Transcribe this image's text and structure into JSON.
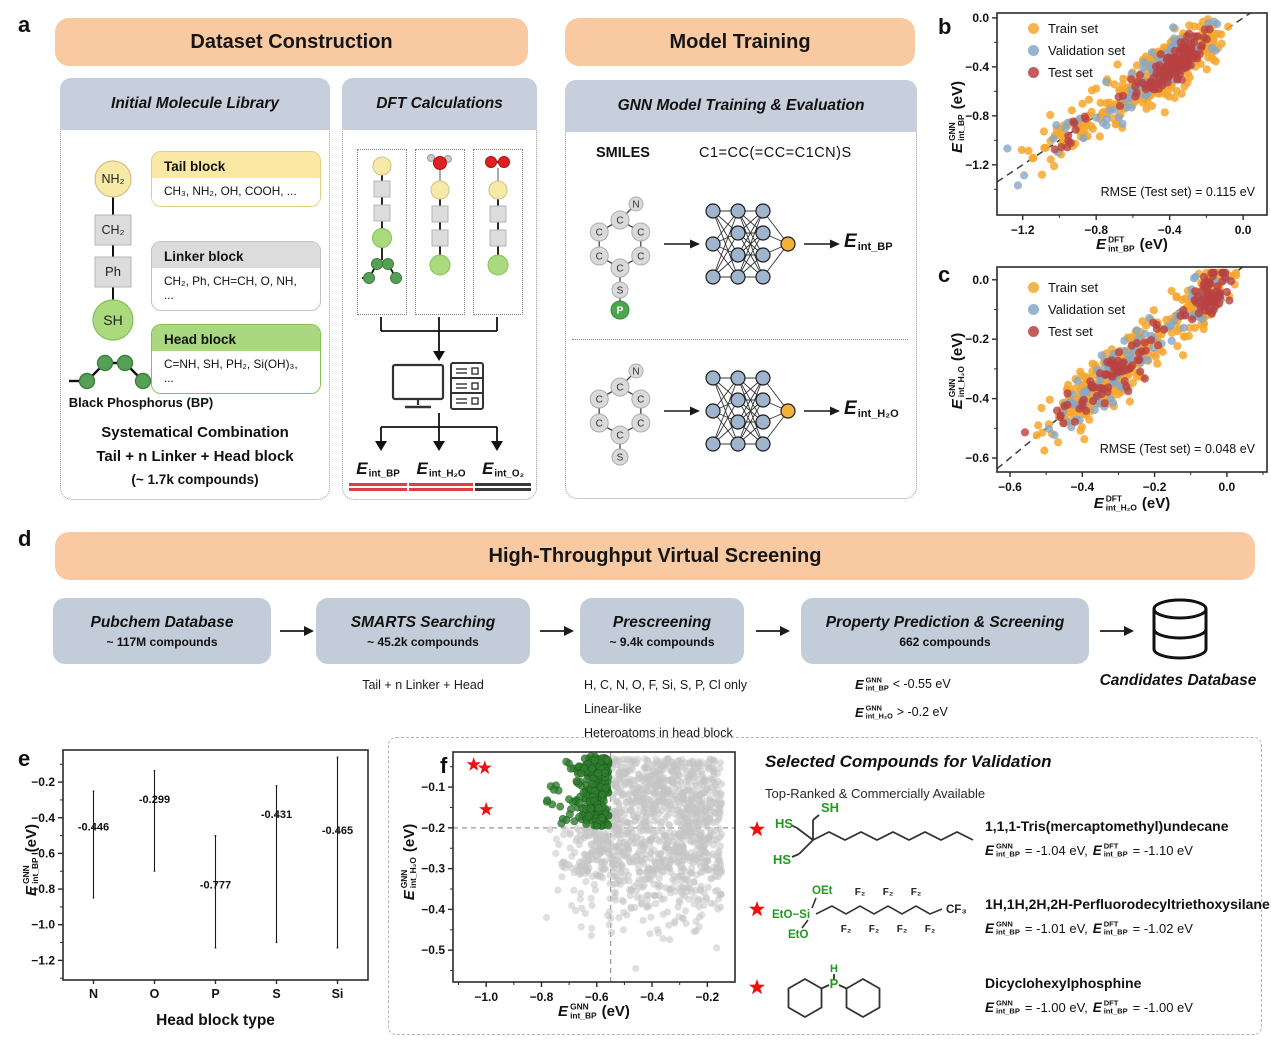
{
  "labels": {
    "a": "a",
    "b": "b",
    "c": "c",
    "d": "d",
    "e": "e",
    "f": "f"
  },
  "theme": {
    "banner_bg": "#F9C9A1",
    "subpanel_header_bg": "#C7CFDC",
    "flowbox_bg": "#C3CCD9",
    "accent_red": "#E03E3E",
    "bp_green": "#55A055",
    "node_yellow": "#F7E9A6",
    "node_gray": "#DCDCDC",
    "node_green": "#ABDA7E"
  },
  "panel_a": {
    "banner_dataset": "Dataset Construction",
    "banner_model": "Model Training",
    "library": {
      "title": "Initial Molecule Library",
      "chain": [
        "NH₂",
        "CH₂",
        "Ph",
        "SH"
      ],
      "bp_label": "Black Phosphorus (BP)",
      "blocks": [
        {
          "name": "Tail block",
          "items": "CH₃, NH₂, OH, COOH, ...",
          "header_bg": "#FBE9A3",
          "border": "#E3CE7E"
        },
        {
          "name": "Linker block",
          "items": "CH₂, Ph, CH=CH, O, NH, ...",
          "header_bg": "#DCDCDC",
          "border": "#C2C2C2"
        },
        {
          "name": "Head block",
          "items": "C=NH, SH, PH₂, Si(OH)₃, ...",
          "header_bg": "#A9D880",
          "border": "#82C24E"
        }
      ],
      "combination": [
        "Systematical Combination",
        "Tail + n Linker + Head block",
        "(~ 1.7k compounds)"
      ]
    },
    "dft": {
      "title": "DFT Calculations",
      "outputs": [
        {
          "base": "E",
          "sub": "int_BP",
          "color": "#E03E3E"
        },
        {
          "base": "E",
          "sub": "int_H₂O",
          "color": "#E03E3E"
        },
        {
          "base": "E",
          "sub": "int_O₂",
          "color": "#3A3A3A"
        }
      ]
    },
    "gnn": {
      "title": "GNN Model Training & Evaluation",
      "smiles_label": "SMILES",
      "smiles": "C1=CC(=CC=C1CN)S",
      "mol": {
        "ring": "C",
        "n": "N",
        "s": "S",
        "p": "P"
      },
      "outputs": [
        {
          "base": "E",
          "sub": "int_BP"
        },
        {
          "base": "E",
          "sub": "int_H₂O"
        }
      ]
    }
  },
  "panel_d": {
    "banner": "High-Throughput Virtual Screening",
    "steps": [
      {
        "title": "Pubchem Database",
        "sub": "~ 117M compounds",
        "notes": []
      },
      {
        "title": "SMARTS Searching",
        "sub": "~ 45.2k compounds",
        "notes": [
          "Tail + n Linker + Head"
        ]
      },
      {
        "title": "Prescreening",
        "sub": "~ 9.4k compounds",
        "notes": [
          "H, C, N, O, F, Si, S, P, Cl only",
          "Linear-like",
          "Heteroatoms in head block"
        ]
      },
      {
        "title": "Property Prediction & Screening",
        "sub": "662 compounds",
        "notes": []
      }
    ],
    "criteria": [
      {
        "base": "E",
        "sup": "GNN",
        "sub": "int_BP",
        "cmp": "< -0.55 eV"
      },
      {
        "base": "E",
        "sup": "GNN",
        "sub": "int_H₂O",
        "cmp": "> -0.2 eV"
      }
    ],
    "db_label": "Candidates Database"
  },
  "panel_f": {
    "title": "Selected Compounds for Validation",
    "subtitle": "Top-Ranked & Commercially Available",
    "compounds": [
      {
        "name": "1,1,1-Tris(mercaptomethyl)undecane",
        "base": "E",
        "sup_gnn": "GNN",
        "sup_dft": "DFT",
        "sub": "int_BP",
        "gnn_val": "= -1.04 eV,",
        "dft_val": "= -1.10 eV",
        "labels": [
          "HS",
          "SH",
          "HS"
        ]
      },
      {
        "name": "1H,1H,2H,2H-Perfluorodecyltriethoxysilane",
        "base": "E",
        "sup_gnn": "GNN",
        "sup_dft": "DFT",
        "sub": "int_BP",
        "gnn_val": "= -1.01 eV,",
        "dft_val": "= -1.02 eV",
        "labels": [
          "OEt",
          "EtO−Si",
          "EtO",
          "F₂",
          "CF₃"
        ]
      },
      {
        "name": "Dicyclohexylphosphine",
        "base": "E",
        "sup_gnn": "GNN",
        "sup_dft": "DFT",
        "sub": "int_BP",
        "gnn_val": "= -1.00 eV,",
        "dft_val": "= -1.00 eV",
        "labels": [
          "H",
          "P"
        ]
      }
    ]
  },
  "chart_data": {
    "b": {
      "type": "scatter",
      "legend": [
        "Train set",
        "Validation set",
        "Test set"
      ],
      "colors": {
        "train": "#F6A72E",
        "val": "#87A7C7",
        "test": "#B94141"
      },
      "xlabel": {
        "base": "E",
        "sup": "DFT",
        "sub": "int_BP",
        "unit": "(eV)"
      },
      "ylabel": {
        "base": "E",
        "sup": "GNN",
        "sub": "int_BP",
        "unit": "(eV)"
      },
      "xticks": [
        -1.2,
        -0.8,
        -0.4,
        0.0
      ],
      "yticks": [
        0.0,
        -0.4,
        -0.8,
        -1.2
      ],
      "xlim": [
        -1.34,
        0.13
      ],
      "ylim": [
        -1.61,
        0.04
      ],
      "rmse": "RMSE (Test set) = 0.115 eV",
      "identity_line": true,
      "gen": {
        "seed": 42,
        "clusters": [
          {
            "m": -0.36,
            "s": 0.1,
            "w": 0.62
          },
          {
            "m": -0.56,
            "s": 0.1,
            "w": 0.23
          },
          {
            "m": -0.82,
            "s": 0.12,
            "w": 0.11
          },
          {
            "m": -1.05,
            "s": 0.13,
            "w": 0.04
          }
        ],
        "test_clusters": [
          {
            "m": -0.34,
            "s": 0.07,
            "w": 0.72
          },
          {
            "m": -0.52,
            "s": 0.09,
            "w": 0.22
          },
          {
            "m": -0.95,
            "s": 0.06,
            "w": 0.06
          }
        ],
        "noise": {
          "train": 0.105,
          "val": 0.1,
          "test": 0.07
        },
        "counts": {
          "train": 430,
          "val": 110,
          "test": 135
        }
      }
    },
    "c": {
      "type": "scatter",
      "legend": [
        "Train set",
        "Validation set",
        "Test set"
      ],
      "colors": {
        "train": "#F6A72E",
        "val": "#87A7C7",
        "test": "#B94141"
      },
      "xlabel": {
        "base": "E",
        "sup": "DFT",
        "sub": "int_H₂O",
        "unit": "(eV)"
      },
      "ylabel": {
        "base": "E",
        "sup": "GNN",
        "sub": "int_H₂O",
        "unit": "(eV)"
      },
      "xticks": [
        -0.6,
        -0.4,
        -0.2,
        0.0
      ],
      "yticks": [
        0.0,
        -0.2,
        -0.4,
        -0.6
      ],
      "xlim": [
        -0.636,
        0.111
      ],
      "ylim": [
        -0.647,
        0.043
      ],
      "rmse": "RMSE (Test set) = 0.048 eV",
      "identity_line": true,
      "gen": {
        "seed": 7,
        "clusters": [
          {
            "m": -0.06,
            "s": 0.035,
            "w": 0.3
          },
          {
            "m": -0.28,
            "s": 0.075,
            "w": 0.45
          },
          {
            "m": -0.4,
            "s": 0.06,
            "w": 0.25
          }
        ],
        "test_clusters": [
          {
            "m": -0.05,
            "s": 0.025,
            "w": 0.45
          },
          {
            "m": -0.28,
            "s": 0.07,
            "w": 0.4
          },
          {
            "m": -0.4,
            "s": 0.05,
            "w": 0.15
          }
        ],
        "noise": {
          "train": 0.045,
          "val": 0.045,
          "test": 0.035
        },
        "counts": {
          "train": 430,
          "val": 110,
          "test": 135
        }
      }
    },
    "e": {
      "type": "violin",
      "categories": [
        "N",
        "O",
        "P",
        "S",
        "Si"
      ],
      "medians": [
        -0.446,
        -0.299,
        -0.777,
        -0.431,
        -0.465
      ],
      "median_labels": [
        "-0.446",
        "-0.299",
        "-0.777",
        "-0.431",
        "-0.465"
      ],
      "colors": [
        "#F6BA83",
        "#99D28B",
        "#B5A5D1",
        "#F4EF8B",
        "#92B4E5"
      ],
      "xlabel": "Head block type",
      "ylabel": {
        "base": "E",
        "sup": "GNN",
        "sub": "int_BP",
        "unit": "(eV)"
      },
      "yticks": [
        -0.2,
        -0.4,
        -0.6,
        -0.8,
        -1.0,
        -1.2
      ],
      "ylim": [
        -1.31,
        -0.02
      ],
      "shapes": [
        {
          "top": -0.25,
          "bottom": -0.85,
          "maxw": 22,
          "terms": [
            [
              -0.45,
              0.105,
              1
            ]
          ]
        },
        {
          "top": -0.135,
          "bottom": -0.7,
          "maxw": 21,
          "terms": [
            [
              -0.295,
              0.065,
              1
            ],
            [
              -0.42,
              0.1,
              0.25
            ]
          ]
        },
        {
          "top": -0.5,
          "bottom": -1.13,
          "maxw": 21,
          "terms": [
            [
              -0.775,
              0.07,
              1
            ],
            [
              -1.0,
              0.06,
              0.22
            ]
          ]
        },
        {
          "top": -0.22,
          "bottom": -1.1,
          "maxw": 21,
          "terms": [
            [
              -0.38,
              0.065,
              1
            ],
            [
              -0.6,
              0.14,
              0.18
            ]
          ]
        },
        {
          "top": -0.06,
          "bottom": -1.13,
          "maxw": 24,
          "terms": [
            [
              -0.47,
              0.09,
              1
            ],
            [
              -0.3,
              0.13,
              0.45
            ]
          ]
        }
      ]
    },
    "f": {
      "type": "scatter",
      "xlabel": {
        "base": "E",
        "sup": "GNN",
        "sub": "int_BP",
        "unit": "(eV)"
      },
      "ylabel": {
        "base": "E",
        "sup": "GNN",
        "sub": "int_H₂O",
        "unit": "(eV)"
      },
      "xticks": [
        -1.0,
        -0.8,
        -0.6,
        -0.4,
        -0.2
      ],
      "yticks": [
        -0.1,
        -0.2,
        -0.3,
        -0.4,
        -0.5
      ],
      "xlim": [
        -1.12,
        -0.1
      ],
      "ylim": [
        -0.578,
        -0.014
      ],
      "threshold_x": -0.55,
      "threshold_y": -0.2,
      "colors": {
        "selected": "#2F7D2F",
        "other": "#C4C4C4",
        "star": "#EE1111"
      },
      "stars": [
        [
          -1.045,
          -0.045
        ],
        [
          -1.005,
          -0.053
        ],
        [
          -1.0,
          -0.155
        ]
      ],
      "gen": {
        "seed": 99,
        "n_gray": 1250,
        "n_green": 270
      }
    }
  }
}
